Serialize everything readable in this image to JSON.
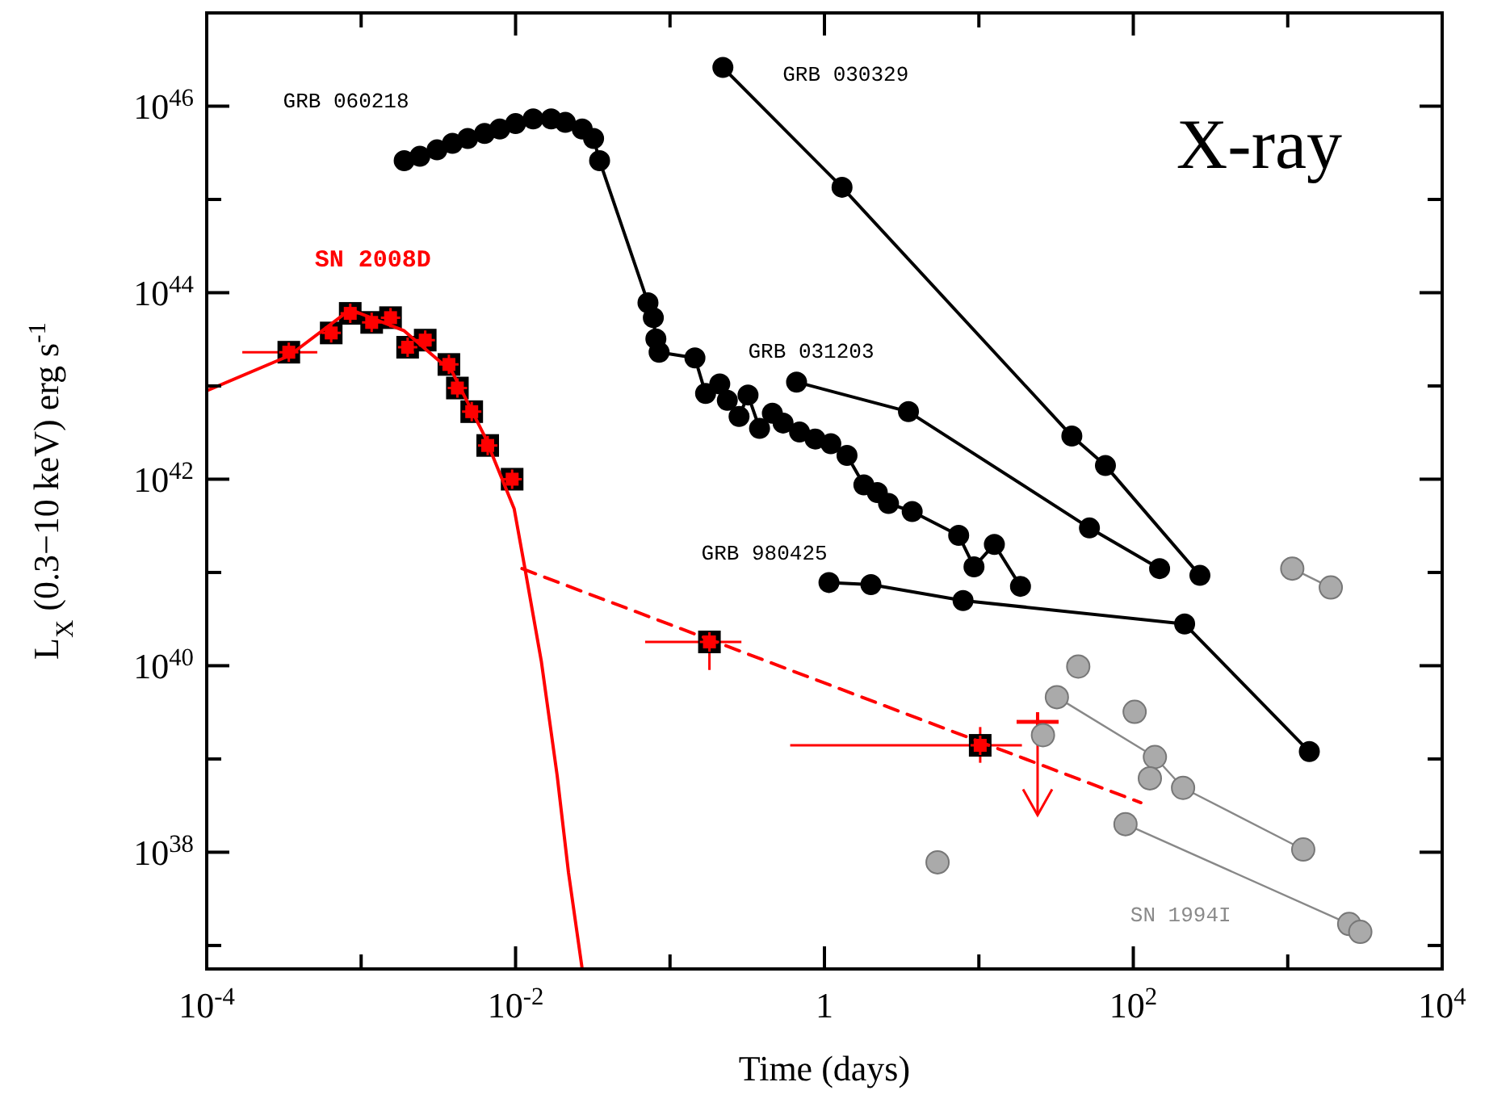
{
  "chart_data": {
    "type": "line",
    "title": "X-ray",
    "xlabel": "Time (days)",
    "ylabel": "L$_{X}$ (0.3−10 keV) erg s$^{-1}$",
    "log": "xy",
    "grid": false,
    "xlim": [
      0.0001,
      10000
    ],
    "xticks": [
      {
        "value": 0.0001,
        "label": "10$^{-4}$"
      },
      {
        "value": 0.001,
        "label": null
      },
      {
        "value": 0.01,
        "label": "10$^{-2}$"
      },
      {
        "value": 0.1,
        "label": null
      },
      {
        "value": 1,
        "label": "1"
      },
      {
        "value": 10,
        "label": null
      },
      {
        "value": 100,
        "label": "10$^{2}$"
      },
      {
        "value": 1000,
        "label": null
      },
      {
        "value": 10000,
        "label": "10$^{4}$"
      }
    ],
    "ylim": [
      5.6e+36,
      1e+47
    ],
    "yticks": [
      {
        "value": 1e+37,
        "label": null
      },
      {
        "value": 1e+38,
        "label": "10$^{38}$"
      },
      {
        "value": 1e+39,
        "label": null
      },
      {
        "value": 1e+40,
        "label": "10$^{40}$"
      },
      {
        "value": 1e+41,
        "label": null
      },
      {
        "value": 1e+42,
        "label": "10$^{42}$"
      },
      {
        "value": 1e+43,
        "label": null
      },
      {
        "value": 1e+44,
        "label": "10$^{44}$"
      },
      {
        "value": 1e+45,
        "label": null
      },
      {
        "value": 1e+46,
        "label": "10$^{46}$"
      }
    ],
    "series": [
      {
        "name": "GRB 060218",
        "color": "#000000",
        "marker": "circle",
        "x": [
          0.0019,
          0.0024,
          0.0031,
          0.0039,
          0.0049,
          0.0063,
          0.0079,
          0.01,
          0.013,
          0.017,
          0.021,
          0.027,
          0.032,
          0.035,
          0.072,
          0.078,
          0.081,
          0.085,
          0.145,
          0.17,
          0.21,
          0.235,
          0.28,
          0.32,
          0.38,
          0.46,
          0.54,
          0.69,
          0.87,
          1.1,
          1.4,
          1.8,
          2.2,
          2.6,
          3.7,
          7.4,
          9.3,
          12.6,
          18.6
        ],
        "values": [
          2.6e+45,
          2.9e+45,
          3.4e+45,
          4e+45,
          4.5e+45,
          5.1e+45,
          5.7e+45,
          6.5e+45,
          7.3e+45,
          7.3e+45,
          6.7e+45,
          5.7e+45,
          4.5e+45,
          2.6e+45,
          7.8e+43,
          5.4e+43,
          3.2e+43,
          2.3e+43,
          2e+43,
          8.3e+42,
          1.05e+43,
          7e+42,
          4.7e+42,
          8e+42,
          3.5e+42,
          5.1e+42,
          4e+42,
          3.2e+42,
          2.7e+42,
          2.4e+42,
          1.8e+42,
          8.7e+41,
          7.2e+41,
          5.5e+41,
          4.5e+41,
          2.5e+41,
          1.15e+41,
          2e+41,
          7.1e+40
        ]
      },
      {
        "name": "GRB 030329",
        "color": "#000000",
        "marker": "circle",
        "x": [
          0.22,
          1.3,
          40,
          66,
          270
        ],
        "values": [
          2.6e+46,
          1.35e+45,
          2.9e+42,
          1.4e+42,
          9.3e+40
        ]
      },
      {
        "name": "GRB 031203",
        "color": "#000000",
        "marker": "circle",
        "x": [
          0.66,
          3.5,
          52,
          148
        ],
        "values": [
          1.1e+43,
          5.3e+42,
          3e+41,
          1.1e+41
        ]
      },
      {
        "name": "GRB 980425",
        "color": "#000000",
        "marker": "circle",
        "x": [
          1.07,
          2,
          7.9,
          215,
          1380
        ],
        "values": [
          7.8e+40,
          7.4e+40,
          5e+40,
          2.8e+40,
          1.2e+39
        ]
      },
      {
        "name": "SN 2008D",
        "type": "scatter",
        "color": "#ff0000",
        "marker": "square",
        "x": [
          0.00034,
          0.00064,
          0.00085,
          0.00117,
          0.00155,
          0.002,
          0.0026,
          0.0037,
          0.0042,
          0.0052,
          0.0066,
          0.0095,
          0.18,
          10.2
        ],
        "values": [
          2.3e+43,
          3.7e+43,
          6e+43,
          4.8e+43,
          5.4e+43,
          2.6e+43,
          3.1e+43,
          1.7e+43,
          9.5e+42,
          5.3e+42,
          2.3e+42,
          1e+42,
          1.8e+40,
          1.4e+39
        ],
        "errors": [
          null,
          null,
          null,
          null,
          null,
          null,
          null,
          null,
          null,
          null,
          null,
          null,
          [
            9e+39,
            2.2e+40
          ],
          [
            9.1e+38,
            2.2e+39
          ]
        ],
        "xerrors": [
          [
            0.00017,
            0.00052
          ],
          null,
          null,
          null,
          null,
          null,
          null,
          null,
          null,
          null,
          null,
          null,
          [
            0.069,
            0.29
          ],
          [
            0.6,
            19
          ]
        ]
      },
      {
        "type": "line",
        "color": "#ff0000",
        "marker": "none",
        "line_style": "solid",
        "x": [
          0.0001,
          0.00034,
          0.00085,
          0.0019,
          0.0039,
          0.0063,
          0.0098,
          0.0115,
          0.0147,
          0.0186,
          0.022,
          0.027
        ],
        "values": [
          8.9e+42,
          2.1e+43,
          6.6e+43,
          3.9e+43,
          1.4e+43,
          2.9e+42,
          4.8e+41,
          1.1e+41,
          1.1e+40,
          6.6e+38,
          6.1e+37,
          5.6e+36
        ]
      },
      {
        "type": "line",
        "color": "#ff0000",
        "marker": "none",
        "line_style": "dashed",
        "x": [
          0.011,
          112
        ],
        "values": [
          1.1e+41,
          3.4e+38
        ]
      },
      {
        "type": "scatter",
        "color": "#ff0000",
        "marker": "cross",
        "x": [
          24
        ],
        "values": [
          2.5e+39
        ],
        "errors": [
          [
            2.5e+38,
            2.5e+39
          ]
        ]
      },
      {
        "type": "line",
        "color": "#aaaaaa",
        "marker": "circle",
        "x": [
          1070,
          1900
        ],
        "values": [
          1.1e+41,
          6.9e+40
        ]
      },
      {
        "type": "line",
        "color": "#aaaaaa",
        "marker": "circle",
        "x": [
          32,
          138,
          210,
          1260
        ],
        "values": [
          4.6e+39,
          1.05e+39,
          4.9e+38,
          1.07e+38
        ]
      },
      {
        "name": "SN 1994I",
        "type": "line",
        "color": "#aaaaaa",
        "marker": "circle",
        "x": [
          89,
          2500,
          2950
        ],
        "values": [
          2e+38,
          1.7e+37,
          1.4e+37
        ]
      },
      {
        "type": "scatter",
        "color": "#aaaaaa",
        "marker": "circle",
        "x": [
          5.4,
          26,
          44,
          102,
          128
        ],
        "values": [
          7.8e+37,
          1.8e+39,
          9.8e+39,
          3.2e+39,
          6.2e+38
        ]
      }
    ]
  }
}
